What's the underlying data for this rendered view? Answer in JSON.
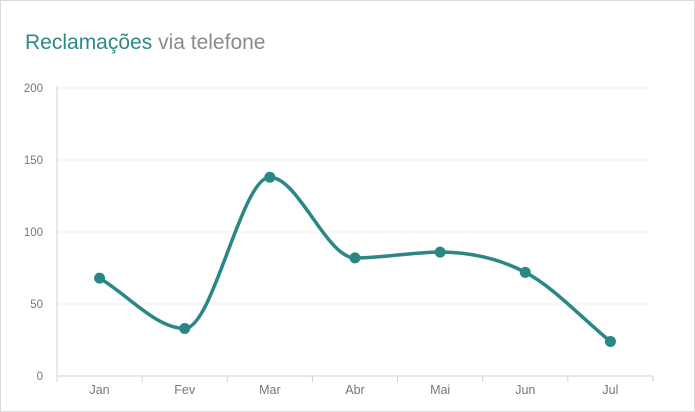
{
  "chart_data": {
    "type": "line",
    "title_accent": "Reclamações",
    "title_rest": "via telefone",
    "categories": [
      "Jan",
      "Fev",
      "Mar",
      "Abr",
      "Mai",
      "Jun",
      "Jul"
    ],
    "series": [
      {
        "values": [
          68,
          33,
          138,
          82,
          86,
          72,
          24
        ]
      }
    ],
    "ylim": [
      0,
      200
    ],
    "yticks": [
      "0",
      "50",
      "100",
      "150",
      "200"
    ],
    "grid": true,
    "colors": {
      "line": "#2a8784",
      "accent": "#2a8a86",
      "muted": "#8a8a8a"
    }
  }
}
